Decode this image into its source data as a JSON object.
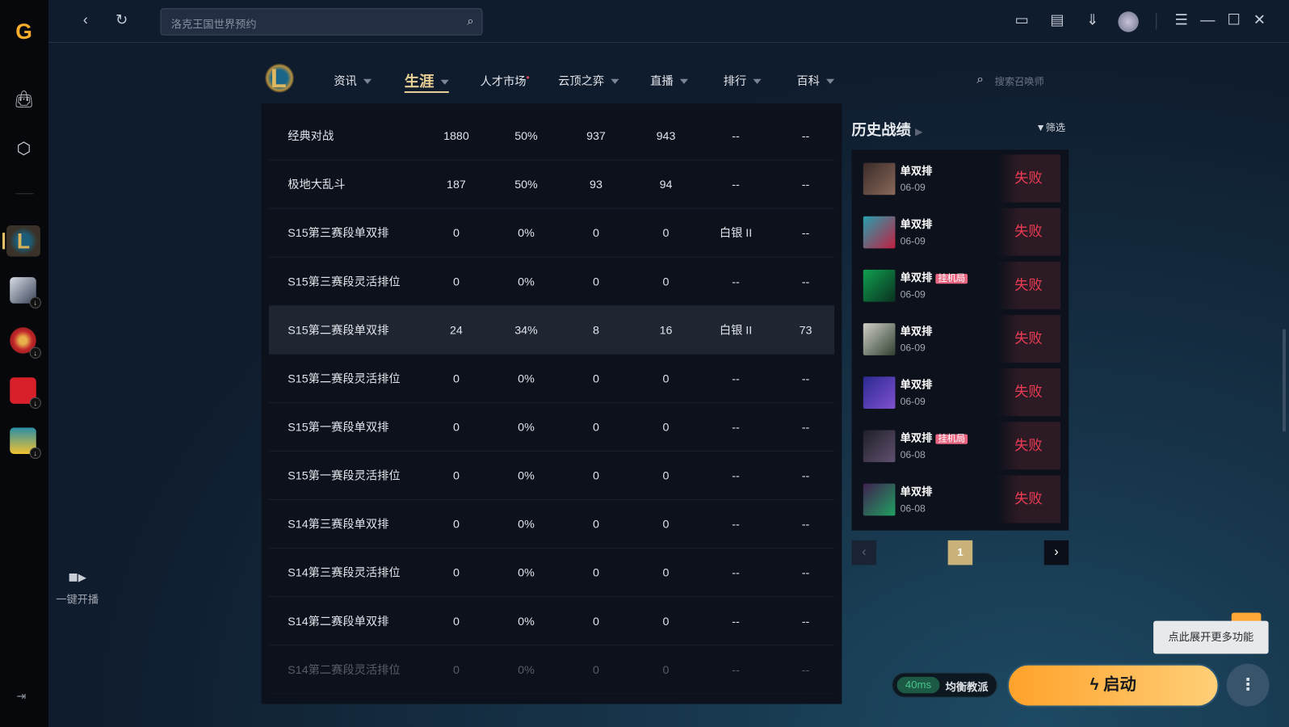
{
  "app": {
    "search_placeholder": "洛克王国世界预约",
    "broadcast_label": "一键开播"
  },
  "nav": {
    "items": [
      {
        "label": "资讯"
      },
      {
        "label": "生涯",
        "active": true
      },
      {
        "label": "人才市场",
        "dot": true
      },
      {
        "label": "云顶之弈"
      },
      {
        "label": "直播"
      },
      {
        "label": "排行"
      },
      {
        "label": "百科"
      }
    ],
    "summoner_search_placeholder": "搜索召唤师"
  },
  "table": {
    "rows": [
      [
        "经典对战",
        "1880",
        "50%",
        "937",
        "943",
        "--",
        "--"
      ],
      [
        "极地大乱斗",
        "187",
        "50%",
        "93",
        "94",
        "--",
        "--"
      ],
      [
        "S15第三赛段单双排",
        "0",
        "0%",
        "0",
        "0",
        "白银 II",
        "--"
      ],
      [
        "S15第三赛段灵活排位",
        "0",
        "0%",
        "0",
        "0",
        "--",
        "--"
      ],
      [
        "S15第二赛段单双排",
        "24",
        "34%",
        "8",
        "16",
        "白银 II",
        "73"
      ],
      [
        "S15第二赛段灵活排位",
        "0",
        "0%",
        "0",
        "0",
        "--",
        "--"
      ],
      [
        "S15第一赛段单双排",
        "0",
        "0%",
        "0",
        "0",
        "--",
        "--"
      ],
      [
        "S15第一赛段灵活排位",
        "0",
        "0%",
        "0",
        "0",
        "--",
        "--"
      ],
      [
        "S14第三赛段单双排",
        "0",
        "0%",
        "0",
        "0",
        "--",
        "--"
      ],
      [
        "S14第三赛段灵活排位",
        "0",
        "0%",
        "0",
        "0",
        "--",
        "--"
      ],
      [
        "S14第二赛段单双排",
        "0",
        "0%",
        "0",
        "0",
        "--",
        "--"
      ],
      [
        "S14第二赛段灵活排位",
        "0",
        "0%",
        "0",
        "0",
        "--",
        "--"
      ]
    ]
  },
  "history": {
    "title": "历史战绩",
    "filter_label": "筛选",
    "afk_badge": "挂机局",
    "page": "1",
    "matches": [
      {
        "mode": "单双排",
        "date": "06-09",
        "result": "失败",
        "afk": false
      },
      {
        "mode": "单双排",
        "date": "06-09",
        "result": "失败",
        "afk": false
      },
      {
        "mode": "单双排",
        "date": "06-09",
        "result": "失败",
        "afk": true
      },
      {
        "mode": "单双排",
        "date": "06-09",
        "result": "失败",
        "afk": false
      },
      {
        "mode": "单双排",
        "date": "06-09",
        "result": "失败",
        "afk": false
      },
      {
        "mode": "单双排",
        "date": "06-08",
        "result": "失败",
        "afk": true
      },
      {
        "mode": "单双排",
        "date": "06-08",
        "result": "失败",
        "afk": false
      }
    ]
  },
  "footer": {
    "ping": "40ms",
    "server": "均衡教派",
    "launch_label": "启动",
    "tooltip": "点此展开更多功能"
  },
  "colors": {
    "accent": "#ffa836",
    "loss": "#ec3c55",
    "afk": "#e86681",
    "gold": "#c8aa6e"
  }
}
